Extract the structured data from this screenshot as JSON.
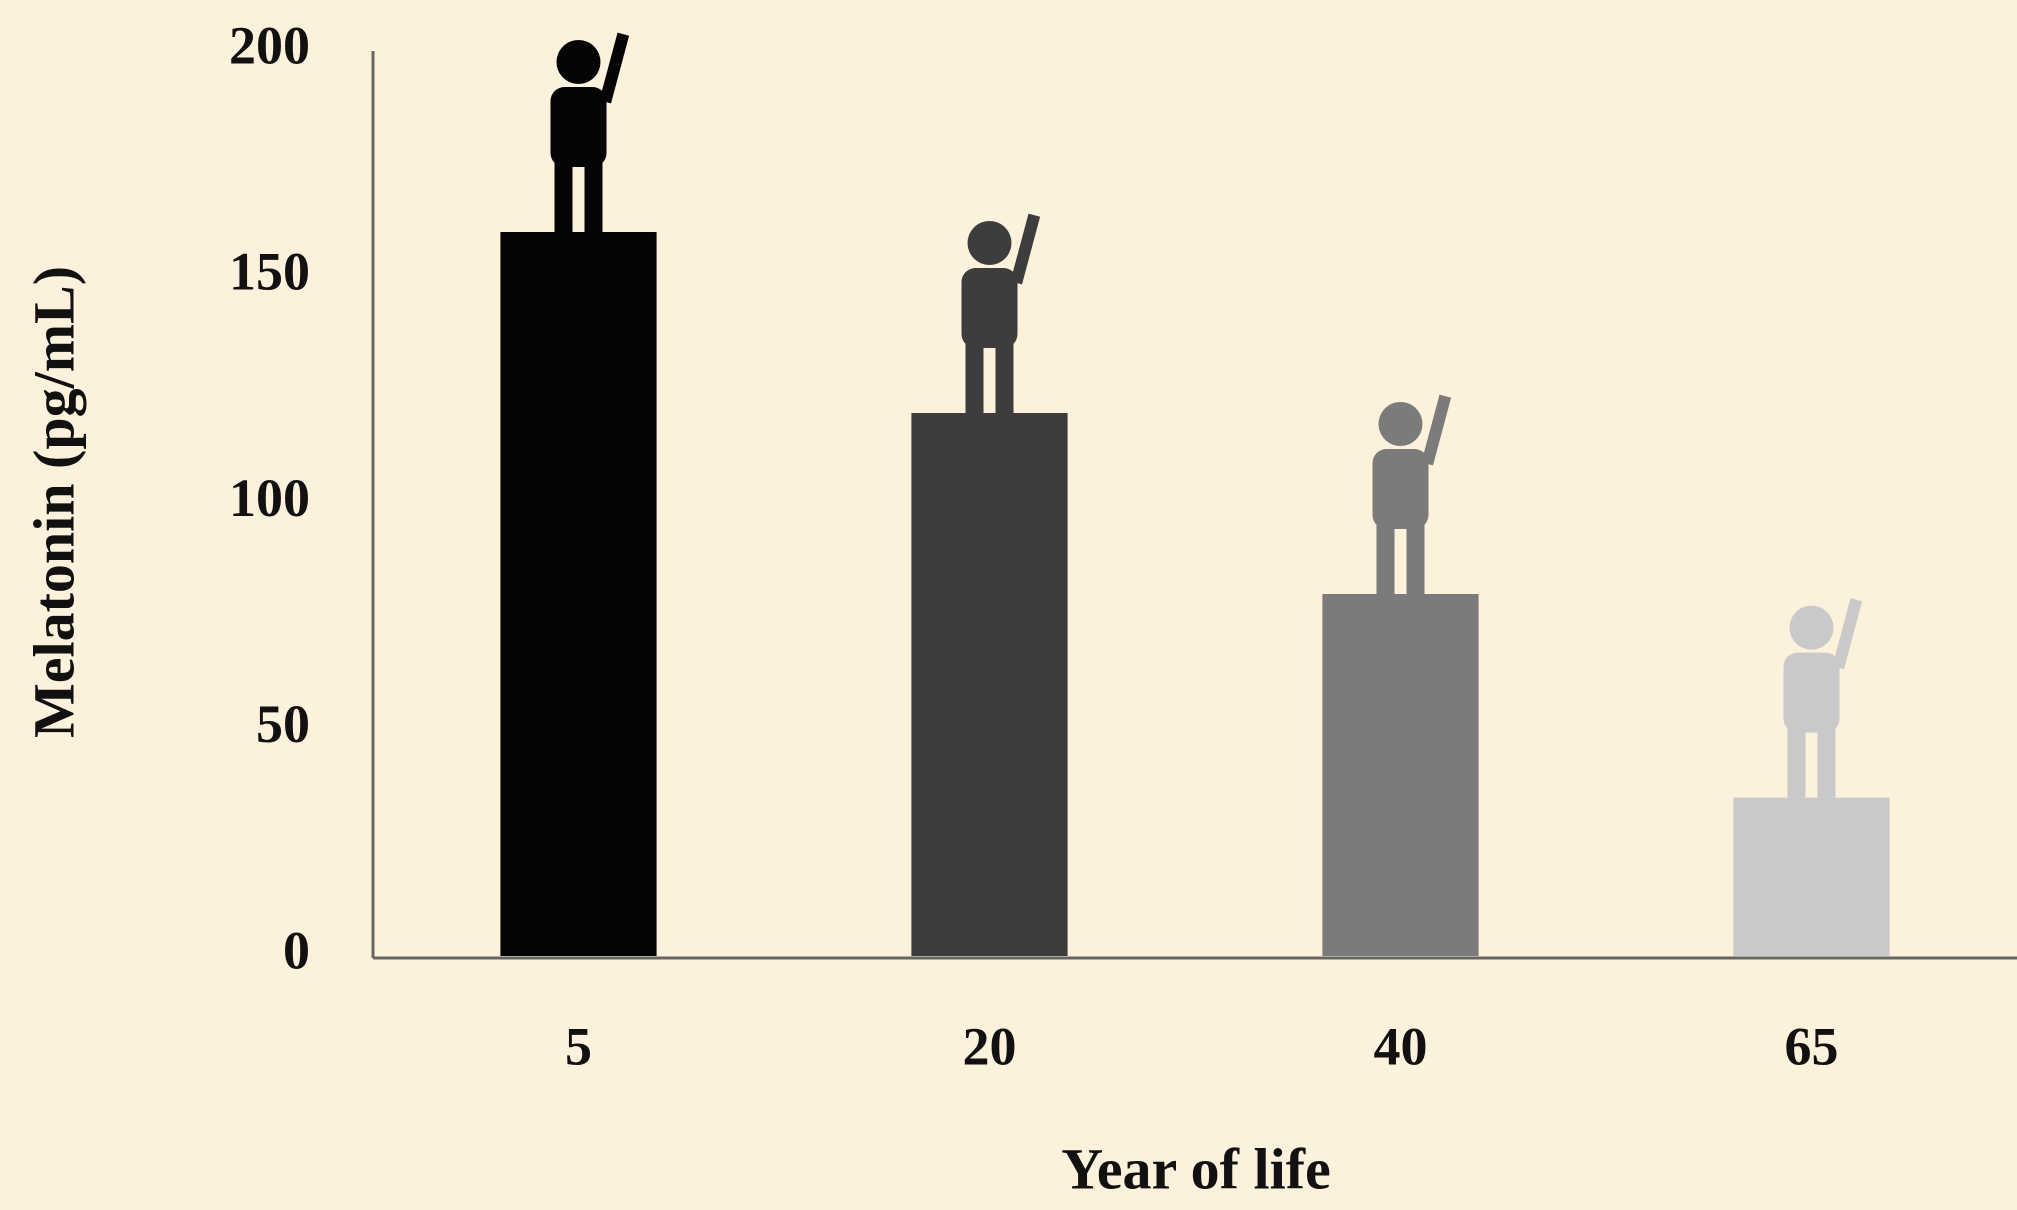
{
  "chart_data": {
    "type": "bar",
    "x_label": "Year of life",
    "y_label": "Melatonin (pg/mL)",
    "categories": [
      "5",
      "20",
      "40",
      "65"
    ],
    "values": [
      160,
      120,
      80,
      35
    ],
    "colors": [
      "#050505",
      "#3d3d3d",
      "#7b7b7b",
      "#c9c9c9"
    ],
    "ylim": [
      0,
      200
    ],
    "yticks": [
      0,
      50,
      100,
      150,
      200
    ],
    "grid": false
  }
}
